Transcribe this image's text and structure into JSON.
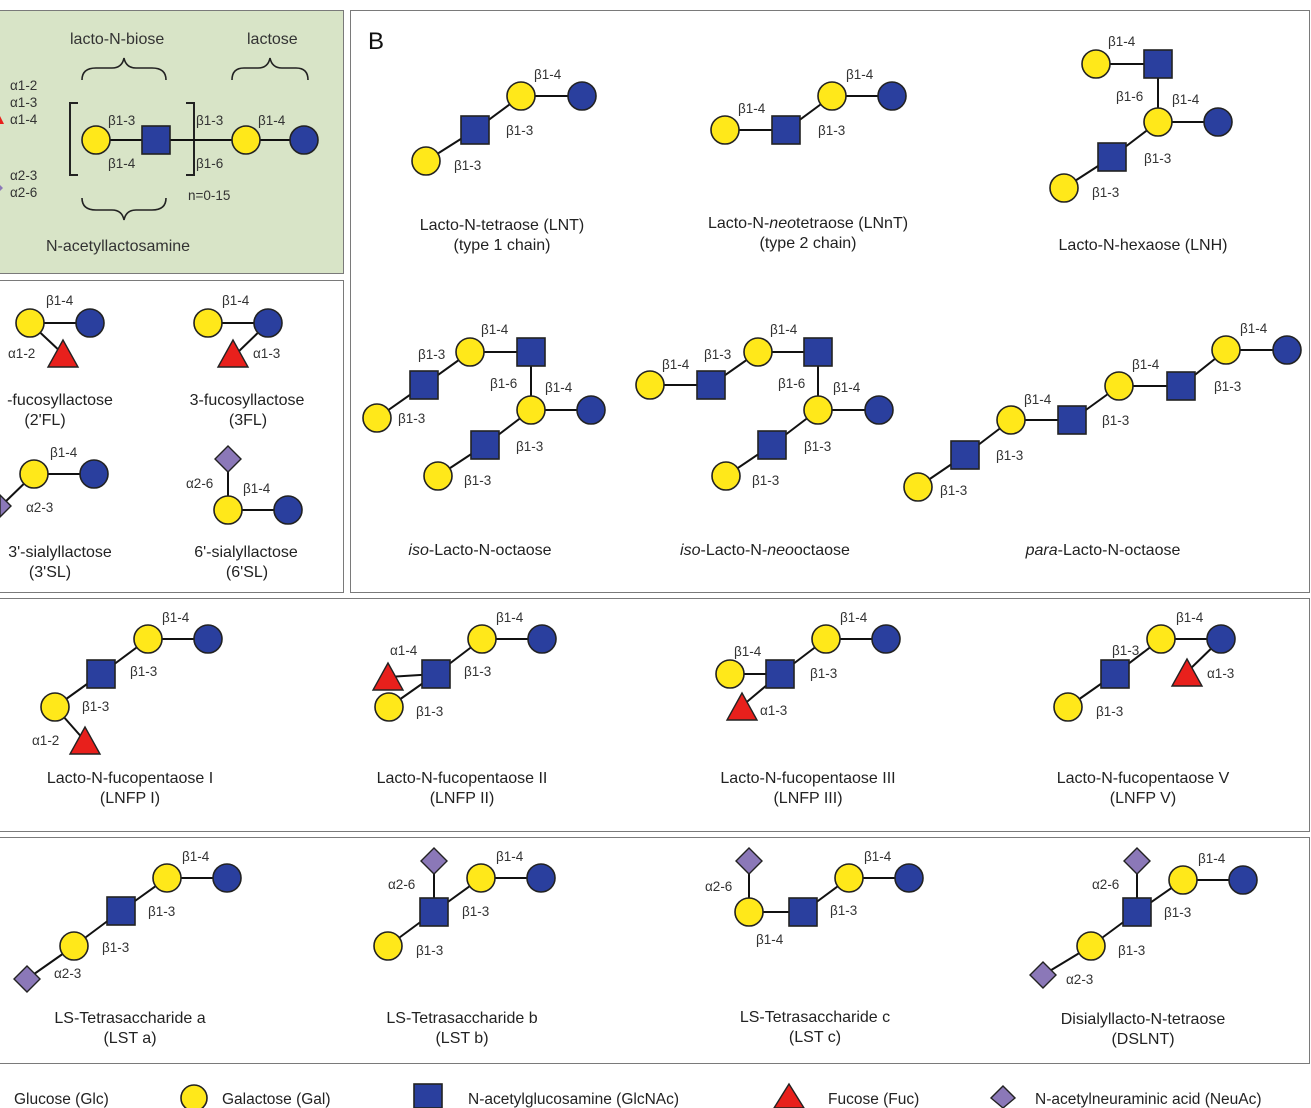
{
  "panel_b_letter": "B",
  "core": {
    "label_lacto_n_biose": "lacto-N-biose",
    "label_lactose": "lactose",
    "label_n_acetyllactosamine": "N-acetyllactosamine",
    "repeat": "n=0-15",
    "linkages_fuc": [
      "α1-2",
      "α1-3",
      "α1-4"
    ],
    "linkages_sia": [
      "α2-3",
      "α2-6"
    ],
    "bond_b13_inner": "β1-3",
    "bond_b14_inner": "β1-4",
    "bond_b13_outer": "β1-3",
    "bond_b16_outer": "β1-6",
    "bond_b14_lactose": "β1-4"
  },
  "small_structures": [
    {
      "name": "-fucosyllactose",
      "abbr": "(2'FL)",
      "bond1": "β1-4",
      "bond2": "α1-2"
    },
    {
      "name": "3-fucosyllactose",
      "abbr": "(3FL)",
      "bond1": "β1-4",
      "bond2": "α1-3"
    },
    {
      "name": "3'-sialyllactose",
      "abbr": "(3'SL)",
      "bond1": "β1-4",
      "bond2": "α2-3"
    },
    {
      "name": "6'-sialyllactose",
      "abbr": "(6'SL)",
      "bond1": "β1-4",
      "bond2": "α2-6"
    }
  ],
  "panel_b": {
    "lnt": {
      "name": "Lacto-N-tetraose (LNT)",
      "sub": "(type 1 chain)",
      "b14": "β1-4",
      "b13a": "β1-3",
      "b13b": "β1-3"
    },
    "lnnt": {
      "name_pre": "Lacto-N-",
      "name_it": "neo",
      "name_post": "tetraose (LNnT)",
      "sub": "(type 2 chain)",
      "b14a": "β1-4",
      "b14b": "β1-4",
      "b13": "β1-3"
    },
    "lnh": {
      "name": "Lacto-N-hexaose (LNH)",
      "b14a": "β1-4",
      "b16": "β1-6",
      "b14b": "β1-4",
      "b13a": "β1-3",
      "b13b": "β1-3"
    },
    "iso_lno": {
      "name_it": "iso",
      "name_post": "-Lacto-N-octaose",
      "b14a": "β1-4",
      "b13a": "β1-3",
      "b16": "β1-6",
      "b14b": "β1-4",
      "b13b": "β1-3",
      "b13c": "β1-3",
      "b13d": "β1-3"
    },
    "iso_lnno": {
      "name_it": "iso",
      "name_mid": "-Lacto-N-",
      "name_it2": "neo",
      "name_post": "octaose",
      "b14a": "β1-4",
      "b13a": "β1-3",
      "b14b": "β1-4",
      "b16": "β1-6",
      "b14c": "β1-4",
      "b13b": "β1-3",
      "b13c": "β1-3"
    },
    "para_lno": {
      "name_it": "para",
      "name_post": "-Lacto-N-octaose",
      "b14a": "β1-4",
      "b13a": "β1-3",
      "b14b": "β1-4",
      "b13b": "β1-3",
      "b14c": "β1-4",
      "b13c": "β1-3",
      "b13d": "β1-3"
    }
  },
  "lnfp": [
    {
      "name": "Lacto-N-fucopentaose I",
      "abbr": "(LNFP I)",
      "b14": "β1-4",
      "b13a": "β1-3",
      "b13b": "β1-3",
      "fuc": "α1-2"
    },
    {
      "name": "Lacto-N-fucopentaose II",
      "abbr": "(LNFP II)",
      "b14": "β1-4",
      "b13a": "β1-3",
      "b13b": "β1-3",
      "fuc": "α1-4"
    },
    {
      "name": "Lacto-N-fucopentaose III",
      "abbr": "(LNFP III)",
      "b14a": "β1-4",
      "b14b": "β1-4",
      "b13": "β1-3",
      "fuc": "α1-3"
    },
    {
      "name": "Lacto-N-fucopentaose V",
      "abbr": "(LNFP V)",
      "b14": "β1-4",
      "b13a": "β1-3",
      "b13b": "β1-3",
      "fuc": "α1-3"
    }
  ],
  "lst": [
    {
      "name": "LS-Tetrasaccharide a",
      "abbr": "(LST a)",
      "b14": "β1-4",
      "b13a": "β1-3",
      "b13b": "β1-3",
      "sia": "α2-3"
    },
    {
      "name": "LS-Tetrasaccharide b",
      "abbr": "(LST b)",
      "b14": "β1-4",
      "b13a": "β1-3",
      "b13b": "β1-3",
      "sia": "α2-6"
    },
    {
      "name": "LS-Tetrasaccharide c",
      "abbr": "(LST c)",
      "b14a": "β1-4",
      "b13": "β1-3",
      "b14b": "β1-4",
      "sia": "α2-6"
    },
    {
      "name": "Disialyllacto-N-tetraose",
      "abbr": "(DSLNT)",
      "b14": "β1-4",
      "b13a": "β1-3",
      "b13b": "β1-3",
      "sia1": "α2-6",
      "sia2": "α2-3"
    }
  ],
  "legend": {
    "glucose": "Glucose (Glc)",
    "galactose": "Galactose (Gal)",
    "glcnac": "N-acetylglucosamine (GlcNAc)",
    "fucose": "Fucose (Fuc)",
    "neuac": "N-acetylneuraminic acid (NeuAc)"
  },
  "colors": {
    "glucose": "#2a3f9e",
    "galactose": "#ffe81a",
    "glcnac": "#2a3f9e",
    "fucose": "#e8201c",
    "neuac": "#8b78b8",
    "core_bg": "#d8e4c7"
  }
}
